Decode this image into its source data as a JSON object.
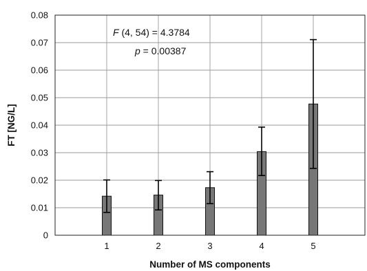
{
  "chart_data": {
    "type": "bar",
    "title": "",
    "xlabel": "Number of MS components",
    "ylabel": "FT [NG/L]",
    "categories": [
      "1",
      "2",
      "3",
      "4",
      "5"
    ],
    "values": [
      0.0142,
      0.0146,
      0.0173,
      0.0304,
      0.0477
    ],
    "error_low": [
      0.0083,
      0.0092,
      0.0115,
      0.0217,
      0.0243
    ],
    "error_high": [
      0.0201,
      0.0199,
      0.0231,
      0.0393,
      0.0711
    ],
    "ylim": [
      0,
      0.08
    ],
    "yticks": [
      0,
      0.01,
      0.02,
      0.03,
      0.04,
      0.05,
      0.06,
      0.07,
      0.08
    ],
    "ytick_labels": [
      "0",
      "0.01",
      "0.02",
      "0.03",
      "0.04",
      "0.05",
      "0.06",
      "0.07",
      "0.08"
    ],
    "grid": true,
    "bar_color": "#777777",
    "annotation": {
      "line1_italic": "F",
      "line1_rest": " (4, 54) = 4.3784",
      "line2_italic": "p",
      "line2_rest": " = 0.00387"
    }
  }
}
